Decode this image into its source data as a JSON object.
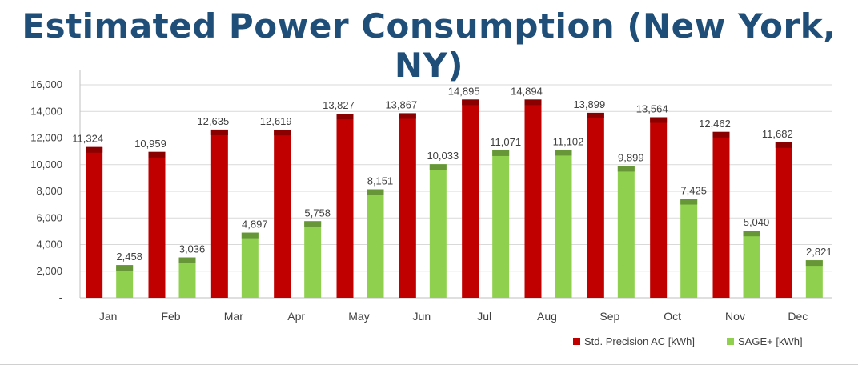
{
  "chart_data": {
    "type": "bar",
    "title": "Estimated Power Consumption (New York, NY)",
    "categories": [
      "Jan",
      "Feb",
      "Mar",
      "Apr",
      "May",
      "Jun",
      "Jul",
      "Aug",
      "Sep",
      "Oct",
      "Nov",
      "Dec"
    ],
    "series": [
      {
        "name": "Std. Precision AC [kWh]",
        "color": "#c00000",
        "values": [
          11324,
          10959,
          12635,
          12619,
          13827,
          13867,
          14895,
          14894,
          13899,
          13564,
          12462,
          11682
        ],
        "labels": [
          "11,324",
          "10,959",
          "12,635",
          "12,619",
          "13,827",
          "13,867",
          "14,895",
          "14,894",
          "13,899",
          "13,564",
          "12,462",
          "11,682"
        ]
      },
      {
        "name": "SAGE+ [kWh]",
        "color": "#8fd14f",
        "values": [
          2458,
          3036,
          4897,
          5758,
          8151,
          10033,
          11071,
          11102,
          9899,
          7425,
          5040,
          2821
        ],
        "labels": [
          "2,458",
          "3,036",
          "4,897",
          "5,758",
          "8,151",
          "10,033",
          "11,071",
          "11,102",
          "9,899",
          "7,425",
          "5,040",
          "2,821"
        ]
      }
    ],
    "yticks": [
      "-",
      "2,000",
      "4,000",
      "6,000",
      "8,000",
      "10,000",
      "12,000",
      "14,000",
      "16,000"
    ],
    "ylim": [
      0,
      16000
    ],
    "grid": true,
    "legend_position": "bottom-right"
  }
}
